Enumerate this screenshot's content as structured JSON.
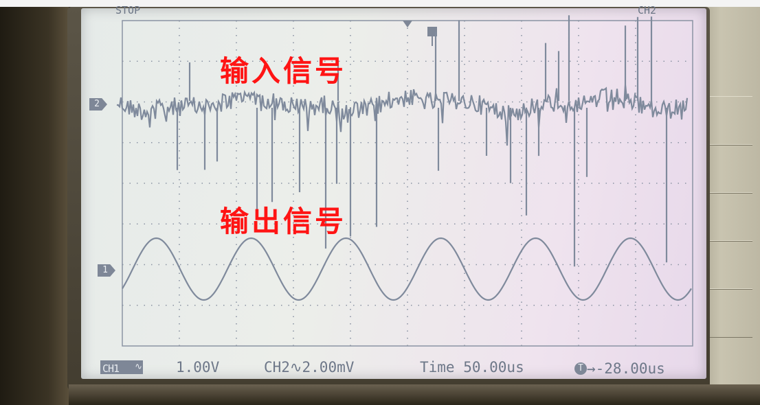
{
  "scope": {
    "top_left_text": "STOP",
    "top_right_text": "CH2",
    "ch1_badge": "CH1",
    "ch1_coupling": "∿",
    "ch1_scale": "1.00V",
    "ch2_setting": "CH2∿2.00mV",
    "timebase": "Time 50.00us",
    "trigger_offset": "→-28.00us",
    "ch1_marker": "1",
    "ch2_marker": "2"
  },
  "annotations": {
    "input_signal": "输入信号",
    "output_signal": "输出信号"
  },
  "colors": {
    "trace": "#7f8a9c",
    "annotation": "#ff1414",
    "grid": "#8a93a3"
  }
}
